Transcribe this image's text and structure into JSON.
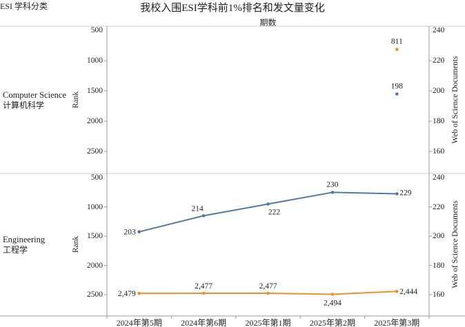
{
  "title": "我校入围ESI学科前1%排名和发文量变化",
  "header": {
    "left": "ESI 学科分类",
    "center": "期数"
  },
  "colors": {
    "rank_series": "#F28E2B",
    "wos_series": "#4E79A7",
    "axis_line": "#9a9a9a",
    "divider": "#cccccc",
    "text": "#1f1f1f"
  },
  "chart_data": {
    "type": "line",
    "title": "我校入围ESI学科前1%排名和发文量变化",
    "x_categories": [
      "2024年第5期",
      "2024年第6期",
      "2025年第1期",
      "2025年第2期",
      "2025年第3期"
    ],
    "left_axis": {
      "title": "Rank",
      "ticks": [
        500,
        1000,
        1500,
        2000,
        2500
      ],
      "inverted": true
    },
    "right_axis": {
      "title": "Web of Science Documents",
      "ticks": [
        240,
        220,
        200,
        180,
        160
      ]
    },
    "grid": "off",
    "legend": "none",
    "panels": [
      {
        "subject_en": "Computer Science",
        "subject_zh": "计算机科学",
        "series": [
          {
            "name": "Rank",
            "axis": "left",
            "color": "#F28E2B",
            "values": [
              null,
              null,
              null,
              null,
              811
            ],
            "labels": [
              null,
              null,
              null,
              null,
              "811"
            ]
          },
          {
            "name": "Web of Science Documents",
            "axis": "right",
            "color": "#4E79A7",
            "values": [
              null,
              null,
              null,
              null,
              198
            ],
            "labels": [
              null,
              null,
              null,
              null,
              "198"
            ]
          }
        ]
      },
      {
        "subject_en": "Engineering",
        "subject_zh": "工程学",
        "series": [
          {
            "name": "Rank",
            "axis": "left",
            "color": "#F28E2B",
            "values": [
              2479,
              2477,
              2477,
              2494,
              2444
            ],
            "labels": [
              "2,479",
              "2,477",
              "2,477",
              "2,494",
              "2,444"
            ]
          },
          {
            "name": "Web of Science Documents",
            "axis": "right",
            "color": "#4E79A7",
            "values": [
              203,
              214,
              222,
              230,
              229
            ],
            "labels": [
              "203",
              "214",
              "222",
              "230",
              "229"
            ]
          }
        ]
      }
    ]
  }
}
